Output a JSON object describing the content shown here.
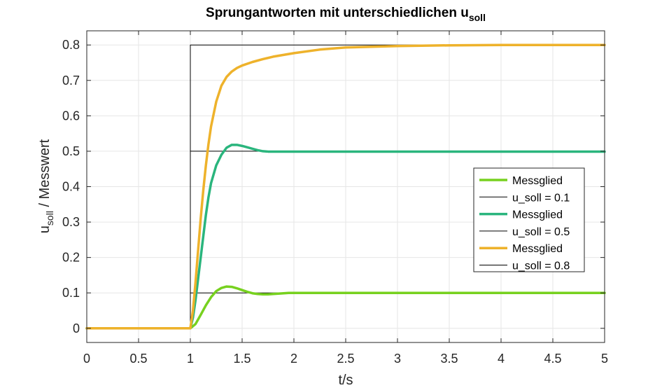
{
  "chart_data": {
    "type": "line",
    "title": {
      "main": "Sprungantworten mit unterschiedlichen u",
      "subscript": "soll"
    },
    "xlabel": "t/s",
    "ylabel": {
      "base": "u",
      "subscript": "soll",
      "rest": " / Messwert"
    },
    "xlim": [
      0,
      5
    ],
    "ylim": [
      -0.04,
      0.84
    ],
    "xticks": [
      0,
      0.5,
      1,
      1.5,
      2,
      2.5,
      3,
      3.5,
      4,
      4.5,
      5
    ],
    "xtick_labels": [
      "0",
      "0.5",
      "1",
      "1.5",
      "2",
      "2.5",
      "3",
      "3.5",
      "4",
      "4.5",
      "5"
    ],
    "yticks": [
      0,
      0.1,
      0.2,
      0.3,
      0.4,
      0.5,
      0.6,
      0.7,
      0.8
    ],
    "ytick_labels": [
      "0",
      "0.1",
      "0.2",
      "0.3",
      "0.4",
      "0.5",
      "0.6",
      "0.7",
      "0.8"
    ],
    "grid": true,
    "legend_position": "right",
    "step_time": 1,
    "series": [
      {
        "name": "Messglied",
        "kind": "measured",
        "color": "#77d11f",
        "x": [
          0,
          1,
          1.05,
          1.1,
          1.15,
          1.2,
          1.25,
          1.3,
          1.35,
          1.4,
          1.45,
          1.5,
          1.55,
          1.6,
          1.65,
          1.7,
          1.75,
          1.8,
          1.85,
          1.9,
          1.95,
          2,
          2.2,
          2.5,
          3,
          5
        ],
        "y": [
          0,
          0,
          0.012,
          0.038,
          0.065,
          0.088,
          0.105,
          0.114,
          0.118,
          0.117,
          0.113,
          0.108,
          0.103,
          0.099,
          0.097,
          0.096,
          0.096,
          0.097,
          0.098,
          0.099,
          0.1,
          0.1,
          0.1,
          0.1,
          0.1,
          0.1
        ]
      },
      {
        "name": "u_soll = 0.1",
        "kind": "setpoint",
        "color": "#000000",
        "x": [
          0,
          1,
          1,
          5
        ],
        "y": [
          0,
          0,
          0.1,
          0.1
        ]
      },
      {
        "name": "Messglied",
        "kind": "measured",
        "color": "#2ab57d",
        "x": [
          0,
          1,
          1.025,
          1.05,
          1.075,
          1.1,
          1.125,
          1.15,
          1.175,
          1.2,
          1.25,
          1.3,
          1.35,
          1.4,
          1.45,
          1.5,
          1.55,
          1.6,
          1.65,
          1.7,
          1.75,
          1.8,
          1.9,
          2,
          2.5,
          5
        ],
        "y": [
          0,
          0,
          0.03,
          0.08,
          0.14,
          0.2,
          0.26,
          0.32,
          0.37,
          0.41,
          0.46,
          0.49,
          0.51,
          0.518,
          0.518,
          0.515,
          0.511,
          0.507,
          0.503,
          0.5,
          0.499,
          0.499,
          0.499,
          0.499,
          0.499,
          0.499
        ]
      },
      {
        "name": "u_soll = 0.5",
        "kind": "setpoint",
        "color": "#000000",
        "x": [
          0,
          1,
          1,
          5
        ],
        "y": [
          0,
          0,
          0.5,
          0.5
        ]
      },
      {
        "name": "Messglied",
        "kind": "measured",
        "color": "#eeb22b",
        "x": [
          0,
          1,
          1.025,
          1.05,
          1.075,
          1.1,
          1.125,
          1.15,
          1.175,
          1.2,
          1.25,
          1.3,
          1.35,
          1.4,
          1.45,
          1.5,
          1.6,
          1.7,
          1.8,
          2,
          2.25,
          2.5,
          3,
          3.5,
          4,
          5
        ],
        "y": [
          0,
          0,
          0.05,
          0.13,
          0.22,
          0.31,
          0.39,
          0.46,
          0.52,
          0.57,
          0.64,
          0.685,
          0.71,
          0.725,
          0.735,
          0.742,
          0.752,
          0.76,
          0.767,
          0.777,
          0.787,
          0.793,
          0.797,
          0.799,
          0.8,
          0.8
        ]
      },
      {
        "name": "u_soll = 0.8",
        "kind": "setpoint",
        "color": "#000000",
        "x": [
          0,
          1,
          1,
          5
        ],
        "y": [
          0,
          0,
          0.8,
          0.8
        ]
      }
    ]
  }
}
